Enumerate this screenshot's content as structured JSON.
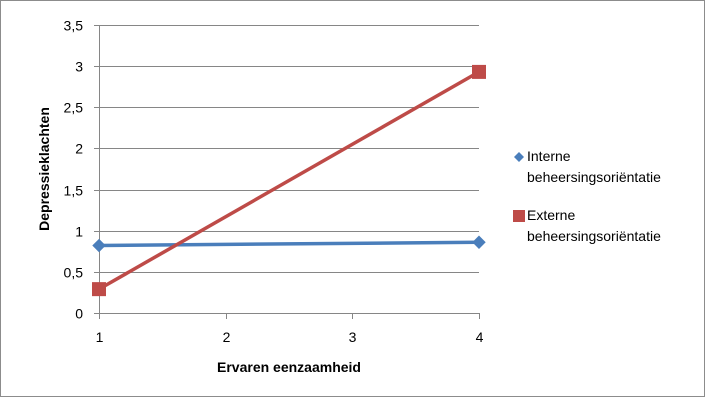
{
  "chart_data": {
    "type": "line",
    "title": "",
    "xlabel": "Ervaren eenzaamheid",
    "ylabel": "Depressieklachten",
    "x": [
      1,
      4
    ],
    "x_ticks": [
      "1",
      "2",
      "3",
      "4"
    ],
    "x_tick_values": [
      1,
      2,
      3,
      4
    ],
    "xlim": [
      1,
      4
    ],
    "y_ticks": [
      "0",
      "0,5",
      "1",
      "1,5",
      "2",
      "2,5",
      "3",
      "3,5"
    ],
    "y_tick_values": [
      0,
      0.5,
      1,
      1.5,
      2,
      2.5,
      3,
      3.5
    ],
    "ylim": [
      0,
      3.5
    ],
    "grid": "horizontal",
    "legend_position": "right",
    "series": [
      {
        "name": "Interne beheersingsoriëntatie",
        "legend_lines": [
          "Interne",
          "beheersingsoriëntatie"
        ],
        "values": [
          0.82,
          0.86
        ],
        "color": "#4a7ebb",
        "marker": "diamond"
      },
      {
        "name": "Externe beheersingsoriëntatie",
        "legend_lines": [
          "Externe",
          "beheersingsoriëntatie"
        ],
        "values": [
          0.29,
          2.93
        ],
        "color": "#be4b48",
        "marker": "square"
      }
    ]
  }
}
